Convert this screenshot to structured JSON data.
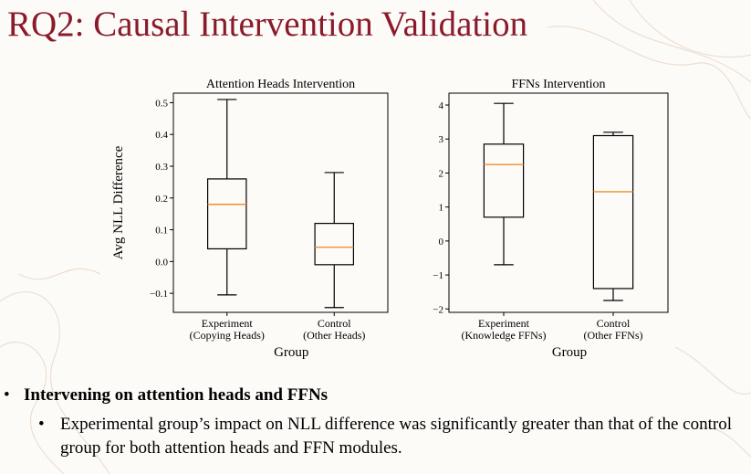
{
  "slide": {
    "title": "RQ2: Causal Intervention Validation",
    "bullet1": "Intervening on attention heads and FFNs",
    "bullet2": "Experimental group’s impact on NLL difference was significantly greater than that of the control group for both attention heads and FFN modules."
  },
  "chart_data": [
    {
      "type": "box",
      "title": "Attention Heads Intervention",
      "xlabel": "Group",
      "ylabel": "Avg NLL Difference",
      "ylim": [
        -0.16,
        0.53
      ],
      "yticks": [
        -0.1,
        0.0,
        0.1,
        0.2,
        0.3,
        0.4,
        0.5
      ],
      "ytick_labels": [
        "−0.1",
        "0.0",
        "0.1",
        "0.2",
        "0.3",
        "0.4",
        "0.5"
      ],
      "categories": [
        {
          "line1": "Experiment",
          "line2": "(Copying Heads)"
        },
        {
          "line1": "Control",
          "line2": "(Other Heads)"
        }
      ],
      "boxes": [
        {
          "whisker_low": -0.105,
          "q1": 0.04,
          "median": 0.18,
          "q3": 0.26,
          "whisker_high": 0.51
        },
        {
          "whisker_low": -0.145,
          "q1": -0.01,
          "median": 0.045,
          "q3": 0.12,
          "whisker_high": 0.28
        }
      ],
      "box_color": "#000000",
      "median_color": "#f28e2b"
    },
    {
      "type": "box",
      "title": "FFNs Intervention",
      "xlabel": "Group",
      "ylabel": "",
      "ylim": [
        -2.1,
        4.35
      ],
      "yticks": [
        -2,
        -1,
        0,
        1,
        2,
        3,
        4
      ],
      "ytick_labels": [
        "−2",
        "−1",
        "0",
        "1",
        "2",
        "3",
        "4"
      ],
      "categories": [
        {
          "line1": "Experiment",
          "line2": "(Knowledge FFNs)"
        },
        {
          "line1": "Control",
          "line2": "(Other FFNs)"
        }
      ],
      "boxes": [
        {
          "whisker_low": -0.7,
          "q1": 0.7,
          "median": 2.25,
          "q3": 2.85,
          "whisker_high": 4.05
        },
        {
          "whisker_low": -1.75,
          "q1": -1.4,
          "median": 1.45,
          "q3": 3.1,
          "whisker_high": 3.2
        }
      ],
      "box_color": "#000000",
      "median_color": "#f28e2b"
    }
  ]
}
